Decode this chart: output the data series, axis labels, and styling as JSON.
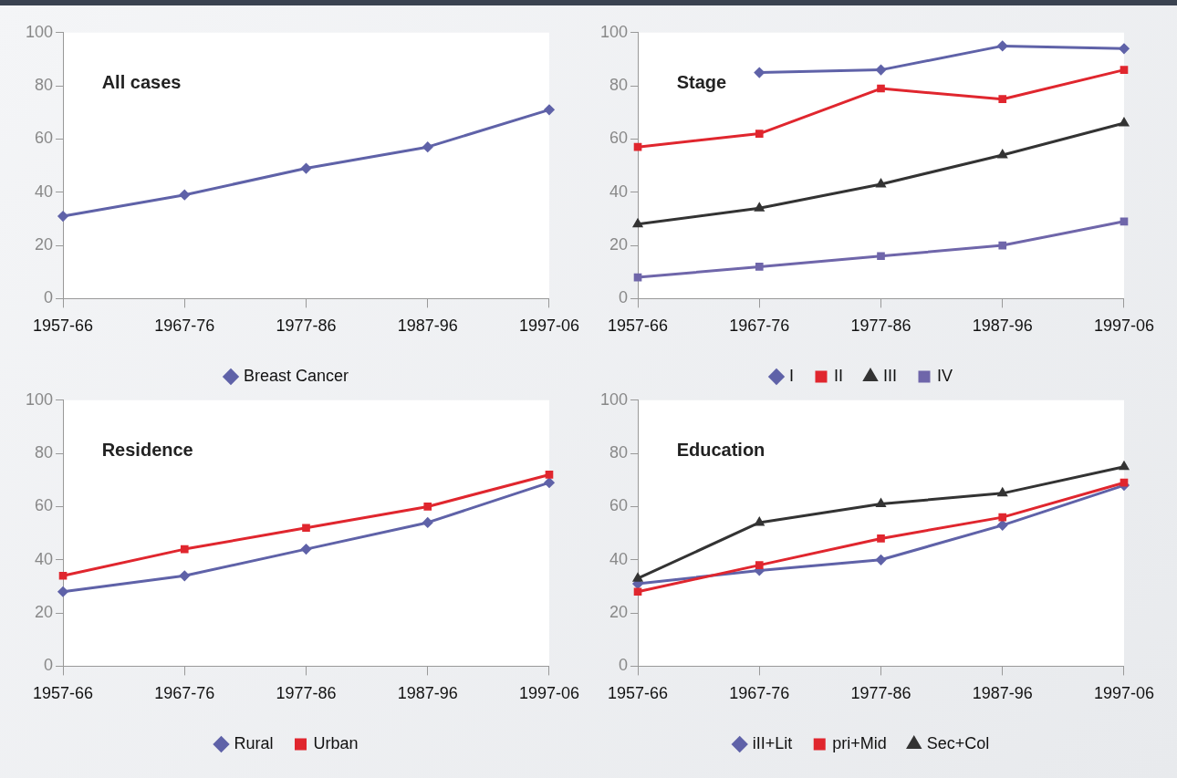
{
  "chart_data": [
    {
      "type": "line",
      "title": "All cases",
      "categories": [
        "1957-66",
        "1967-76",
        "1977-86",
        "1987-96",
        "1997-06"
      ],
      "ylim": [
        0,
        100
      ],
      "yticks": [
        0,
        20,
        40,
        60,
        80,
        100
      ],
      "grid": false,
      "legend": "bottom",
      "line_style": "solid",
      "series": [
        {
          "name": "Breast Cancer",
          "color": "#5f62a8",
          "marker": "diamond",
          "values": [
            31,
            39,
            49,
            57,
            71
          ]
        }
      ]
    },
    {
      "type": "line",
      "title": "Stage",
      "categories": [
        "1957-66",
        "1967-76",
        "1977-86",
        "1987-96",
        "1997-06"
      ],
      "ylim": [
        0,
        100
      ],
      "yticks": [
        0,
        20,
        40,
        60,
        80,
        100
      ],
      "grid": false,
      "legend": "bottom",
      "line_style": "solid",
      "series": [
        {
          "name": "I",
          "color": "#5f62a8",
          "marker": "diamond",
          "values": [
            null,
            85,
            86,
            95,
            94
          ]
        },
        {
          "name": "II",
          "color": "#e0262e",
          "marker": "square",
          "values": [
            57,
            62,
            79,
            75,
            86
          ]
        },
        {
          "name": "III",
          "color": "#333333",
          "marker": "triangle",
          "values": [
            28,
            34,
            43,
            54,
            66
          ]
        },
        {
          "name": "IV",
          "color": "#6f66aa",
          "marker": "square",
          "values": [
            8,
            12,
            16,
            20,
            29
          ]
        }
      ]
    },
    {
      "type": "line",
      "title": "Residence",
      "categories": [
        "1957-66",
        "1967-76",
        "1977-86",
        "1987-96",
        "1997-06"
      ],
      "ylim": [
        0,
        100
      ],
      "yticks": [
        0,
        20,
        40,
        60,
        80,
        100
      ],
      "grid": false,
      "legend": "bottom",
      "line_style": "solid",
      "series": [
        {
          "name": "Rural",
          "color": "#5f62a8",
          "marker": "diamond",
          "values": [
            28,
            34,
            44,
            54,
            69
          ]
        },
        {
          "name": "Urban",
          "color": "#e0262e",
          "marker": "square",
          "values": [
            34,
            44,
            52,
            60,
            72
          ]
        }
      ]
    },
    {
      "type": "line",
      "title": "Education",
      "categories": [
        "1957-66",
        "1967-76",
        "1977-86",
        "1987-96",
        "1997-06"
      ],
      "ylim": [
        0,
        100
      ],
      "yticks": [
        0,
        20,
        40,
        60,
        80,
        100
      ],
      "grid": false,
      "legend": "bottom",
      "line_style": "solid",
      "series": [
        {
          "name": "iII+Lit",
          "color": "#5f62a8",
          "marker": "diamond",
          "values": [
            31,
            36,
            40,
            53,
            68
          ]
        },
        {
          "name": "pri+Mid",
          "color": "#e0262e",
          "marker": "square",
          "values": [
            28,
            38,
            48,
            56,
            69
          ]
        },
        {
          "name": "Sec+Col",
          "color": "#333333",
          "marker": "triangle",
          "values": [
            33,
            54,
            61,
            65,
            75
          ]
        }
      ]
    }
  ]
}
